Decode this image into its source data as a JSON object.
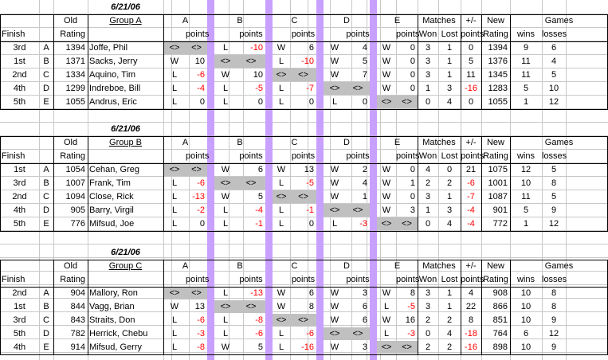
{
  "colors": {
    "separator": "#c8a0ff",
    "blank_cell": "#c0c0c0",
    "negative": "#ff0000",
    "grid": "#c8c8c8"
  },
  "headers": {
    "old": "Old",
    "rating": "Rating",
    "finish": "Finish",
    "a": "A",
    "b": "B",
    "c": "C",
    "d": "D",
    "e": "E",
    "points": "points",
    "matches": "Matches",
    "won": "Won",
    "lost": "Lost",
    "plusminus": "+/-",
    "plusminus_points": "points",
    "new": "New",
    "new_rating": "Rating",
    "games": "Games",
    "wins": "wins",
    "losses": "losses"
  },
  "groups": [
    {
      "date": "6/21/06",
      "name": "Group A",
      "rows": [
        {
          "finish": "3rd",
          "letter": "A",
          "rating": "1394",
          "player": "Joffe, Phil",
          "results": [
            {
              "wl": "<>",
              "pts": "<>",
              "blank": true
            },
            {
              "wl": "L",
              "pts": "-10"
            },
            {
              "wl": "W",
              "pts": "6"
            },
            {
              "wl": "W",
              "pts": "4"
            },
            {
              "wl": "W",
              "pts": "0"
            }
          ],
          "won": "3",
          "lost": "1",
          "pm": "0",
          "new": "1394",
          "wins": "9",
          "losses": "6"
        },
        {
          "finish": "1st",
          "letter": "B",
          "rating": "1371",
          "player": "Sacks, Jerry",
          "results": [
            {
              "wl": "W",
              "pts": "10"
            },
            {
              "wl": "<>",
              "pts": "<>",
              "blank": true
            },
            {
              "wl": "L",
              "pts": "-10"
            },
            {
              "wl": "W",
              "pts": "5"
            },
            {
              "wl": "W",
              "pts": "0"
            }
          ],
          "won": "3",
          "lost": "1",
          "pm": "5",
          "new": "1376",
          "wins": "11",
          "losses": "4"
        },
        {
          "finish": "2nd",
          "letter": "C",
          "rating": "1334",
          "player": "Aquino, Tim",
          "results": [
            {
              "wl": "L",
              "pts": "-6"
            },
            {
              "wl": "W",
              "pts": "10"
            },
            {
              "wl": "<>",
              "pts": "<>",
              "blank": true
            },
            {
              "wl": "W",
              "pts": "7"
            },
            {
              "wl": "W",
              "pts": "0"
            }
          ],
          "won": "3",
          "lost": "1",
          "pm": "11",
          "new": "1345",
          "wins": "11",
          "losses": "5"
        },
        {
          "finish": "4th",
          "letter": "D",
          "rating": "1299",
          "player": "Indreboe, Bill",
          "results": [
            {
              "wl": "L",
              "pts": "-4"
            },
            {
              "wl": "L",
              "pts": "-5"
            },
            {
              "wl": "L",
              "pts": "-7"
            },
            {
              "wl": "<>",
              "pts": "<>",
              "blank": true
            },
            {
              "wl": "W",
              "pts": "0"
            }
          ],
          "won": "1",
          "lost": "3",
          "pm": "-16",
          "new": "1283",
          "wins": "5",
          "losses": "10"
        },
        {
          "finish": "5th",
          "letter": "E",
          "rating": "1055",
          "player": "Andrus, Eric",
          "results": [
            {
              "wl": "L",
              "pts": "0"
            },
            {
              "wl": "L",
              "pts": "0"
            },
            {
              "wl": "L",
              "pts": "0"
            },
            {
              "wl": "L",
              "pts": "0"
            },
            {
              "wl": "<>",
              "pts": "<>",
              "blank": true
            }
          ],
          "won": "0",
          "lost": "4",
          "pm": "0",
          "new": "1055",
          "wins": "1",
          "losses": "12"
        }
      ]
    },
    {
      "date": "6/21/06",
      "name": "Group B",
      "rows": [
        {
          "finish": "1st",
          "letter": "A",
          "rating": "1054",
          "player": "Cehan, Greg",
          "results": [
            {
              "wl": "<>",
              "pts": "<>",
              "blank": true
            },
            {
              "wl": "W",
              "pts": "6"
            },
            {
              "wl": "W",
              "pts": "13"
            },
            {
              "wl": "W",
              "pts": "2"
            },
            {
              "wl": "W",
              "pts": "0"
            }
          ],
          "won": "4",
          "lost": "0",
          "pm": "21",
          "new": "1075",
          "wins": "12",
          "losses": "5"
        },
        {
          "finish": "3rd",
          "letter": "B",
          "rating": "1007",
          "player": "Frank, Tim",
          "results": [
            {
              "wl": "L",
              "pts": "-6"
            },
            {
              "wl": "<>",
              "pts": "<>",
              "blank": true
            },
            {
              "wl": "L",
              "pts": "-5"
            },
            {
              "wl": "W",
              "pts": "4"
            },
            {
              "wl": "W",
              "pts": "1"
            }
          ],
          "won": "2",
          "lost": "2",
          "pm": "-6",
          "new": "1001",
          "wins": "10",
          "losses": "8"
        },
        {
          "finish": "2nd",
          "letter": "C",
          "rating": "1094",
          "player": "Close, Rick",
          "results": [
            {
              "wl": "L",
              "pts": "-13"
            },
            {
              "wl": "W",
              "pts": "5"
            },
            {
              "wl": "<>",
              "pts": "<>",
              "blank": true
            },
            {
              "wl": "W",
              "pts": "1"
            },
            {
              "wl": "W",
              "pts": "0"
            }
          ],
          "won": "3",
          "lost": "1",
          "pm": "-7",
          "new": "1087",
          "wins": "11",
          "losses": "5"
        },
        {
          "finish": "4th",
          "letter": "D",
          "rating": "905",
          "player": "Barry, Virgil",
          "results": [
            {
              "wl": "L",
              "pts": "-2"
            },
            {
              "wl": "L",
              "pts": "-4"
            },
            {
              "wl": "L",
              "pts": "-1"
            },
            {
              "wl": "<>",
              "pts": "<>",
              "blank": true
            },
            {
              "wl": "W",
              "pts": "3"
            }
          ],
          "won": "1",
          "lost": "3",
          "pm": "-4",
          "new": "901",
          "wins": "5",
          "losses": "9"
        },
        {
          "finish": "5th",
          "letter": "E",
          "rating": "776",
          "player": "Mifsud, Joe",
          "results": [
            {
              "wl": "L",
              "pts": "0"
            },
            {
              "wl": "L",
              "pts": "-1"
            },
            {
              "wl": "L",
              "pts": "0"
            },
            {
              "wl": "L",
              "pts": "-3"
            },
            {
              "wl": "<>",
              "pts": "<>",
              "blank": true
            }
          ],
          "won": "0",
          "lost": "4",
          "pm": "-4",
          "new": "772",
          "wins": "1",
          "losses": "12"
        }
      ]
    },
    {
      "date": "6/21/06",
      "name": "Group C",
      "rows": [
        {
          "finish": "2nd",
          "letter": "A",
          "rating": "904",
          "player": "Mallory, Ron",
          "results": [
            {
              "wl": "<>",
              "pts": "<>",
              "blank": true
            },
            {
              "wl": "L",
              "pts": "-13"
            },
            {
              "wl": "W",
              "pts": "6"
            },
            {
              "wl": "W",
              "pts": "3"
            },
            {
              "wl": "W",
              "pts": "8"
            }
          ],
          "won": "3",
          "lost": "1",
          "pm": "4",
          "new": "908",
          "wins": "10",
          "losses": "8"
        },
        {
          "finish": "1st",
          "letter": "B",
          "rating": "844",
          "player": "Vagg, Brian",
          "results": [
            {
              "wl": "W",
              "pts": "13"
            },
            {
              "wl": "<>",
              "pts": "<>",
              "blank": true
            },
            {
              "wl": "W",
              "pts": "8"
            },
            {
              "wl": "W",
              "pts": "6"
            },
            {
              "wl": "L",
              "pts": "-5"
            }
          ],
          "won": "3",
          "lost": "1",
          "pm": "22",
          "new": "866",
          "wins": "10",
          "losses": "8"
        },
        {
          "finish": "3rd",
          "letter": "C",
          "rating": "843",
          "player": "Straits, Don",
          "results": [
            {
              "wl": "L",
              "pts": "-6"
            },
            {
              "wl": "L",
              "pts": "-8"
            },
            {
              "wl": "<>",
              "pts": "<>",
              "blank": true
            },
            {
              "wl": "W",
              "pts": "6"
            },
            {
              "wl": "W",
              "pts": "16"
            }
          ],
          "won": "2",
          "lost": "2",
          "pm": "8",
          "new": "851",
          "wins": "10",
          "losses": "9"
        },
        {
          "finish": "5th",
          "letter": "D",
          "rating": "782",
          "player": "Herrick, Chebu",
          "results": [
            {
              "wl": "L",
              "pts": "-3"
            },
            {
              "wl": "L",
              "pts": "-6"
            },
            {
              "wl": "L",
              "pts": "-6"
            },
            {
              "wl": "<>",
              "pts": "<>",
              "blank": true
            },
            {
              "wl": "L",
              "pts": "-3"
            }
          ],
          "won": "0",
          "lost": "4",
          "pm": "-18",
          "new": "764",
          "wins": "6",
          "losses": "12"
        },
        {
          "finish": "4th",
          "letter": "E",
          "rating": "914",
          "player": "Mifsud, Gerry",
          "results": [
            {
              "wl": "L",
              "pts": "-8"
            },
            {
              "wl": "W",
              "pts": "5"
            },
            {
              "wl": "L",
              "pts": "-16"
            },
            {
              "wl": "W",
              "pts": "3"
            },
            {
              "wl": "<>",
              "pts": "<>",
              "blank": true
            }
          ],
          "won": "2",
          "lost": "2",
          "pm": "-16",
          "new": "898",
          "wins": "10",
          "losses": "9"
        }
      ]
    }
  ]
}
